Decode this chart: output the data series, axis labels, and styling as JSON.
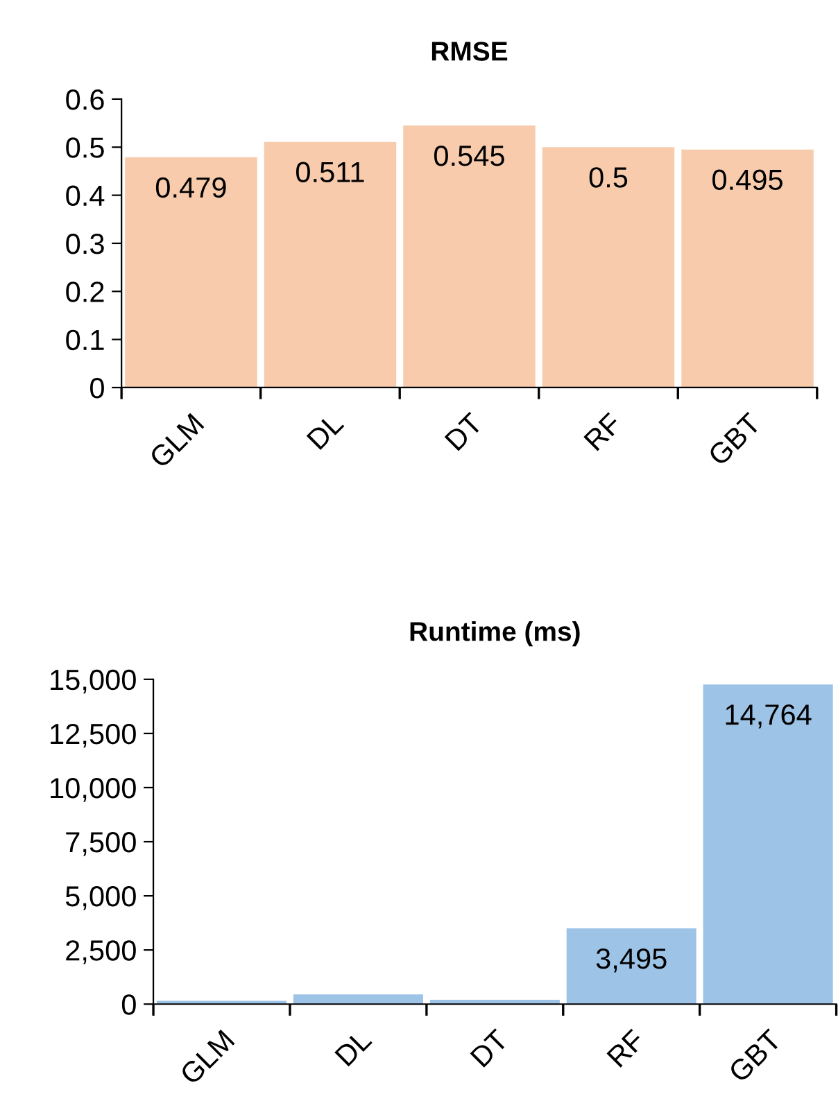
{
  "chart_data": [
    {
      "type": "bar",
      "title": "RMSE",
      "categories": [
        "GLM",
        "DL",
        "DT",
        "RF",
        "GBT"
      ],
      "values": [
        0.479,
        0.511,
        0.545,
        0.5,
        0.495
      ],
      "color": "#f8cbad",
      "ylim": [
        0,
        0.6
      ],
      "yticks": [
        0,
        0.1,
        0.2,
        0.3,
        0.4,
        0.5,
        0.6
      ],
      "data_labels": true,
      "grid": false,
      "legend": false
    },
    {
      "type": "bar",
      "title": "Runtime (ms)",
      "categories": [
        "GLM",
        "DL",
        "DT",
        "RF",
        "GBT"
      ],
      "values": [
        150,
        450,
        200,
        3495,
        14764
      ],
      "value_labels": [
        null,
        null,
        null,
        "3,495",
        "14,764"
      ],
      "color": "#9dc3e6",
      "ylim": [
        0,
        15000
      ],
      "yticks": [
        {
          "value": 0,
          "label": "0"
        },
        {
          "value": 2500,
          "label": "2,500"
        },
        {
          "value": 5000,
          "label": "5,000"
        },
        {
          "value": 7500,
          "label": "7,500"
        },
        {
          "value": 10000,
          "label": "10,000"
        },
        {
          "value": 12500,
          "label": "12,500"
        },
        {
          "value": 15000,
          "label": "15,000"
        }
      ],
      "grid": false,
      "legend": false
    }
  ]
}
